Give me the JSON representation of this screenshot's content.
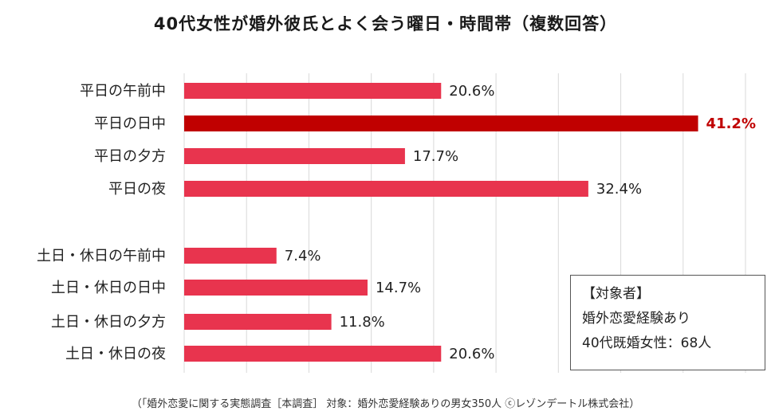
{
  "chart_data": {
    "type": "bar",
    "orientation": "horizontal",
    "title": "40代女性が婚外彼氏とよく会う曜日・時間帯（複数回答）",
    "categories": [
      "平日の午前中",
      "平日の日中",
      "平日の夕方",
      "平日の夜",
      "土日・休日の午前中",
      "土日・休日の日中",
      "土日・休日の夕方",
      "土日・休日の夜"
    ],
    "values": [
      20.6,
      41.2,
      17.7,
      32.4,
      7.4,
      14.7,
      11.8,
      20.6
    ],
    "value_labels": [
      "20.6%",
      "41.2%",
      "17.7%",
      "32.4%",
      "7.4%",
      "14.7%",
      "11.8%",
      "20.6%"
    ],
    "highlight_index": 1,
    "xlim": [
      0,
      45
    ],
    "grid": true,
    "colors": {
      "bar": "#e8344e",
      "highlight": "#c00000",
      "highlight_label": "#c00000",
      "grid": "#d9d9d9"
    }
  },
  "info_box": {
    "heading": "【対象者】",
    "line1": "婚外恋愛経験あり",
    "line2": "40代既婚女性：68人"
  },
  "footnote": "（「婚外恋愛に関する実態調査［本調査］ 対象：婚外恋愛経験ありの男女350人 ⓒレゾンデートル株式会社）"
}
